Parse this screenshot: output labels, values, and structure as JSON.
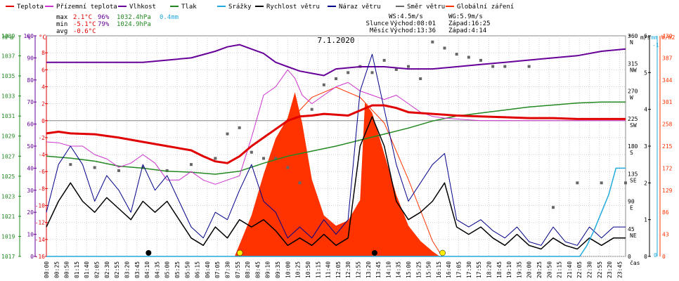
{
  "chart_data": {
    "type": "line",
    "title": "7.1.2020",
    "legend": [
      {
        "label": "Teplota",
        "color": "#e00000"
      },
      {
        "label": "Přízemní teplota",
        "color": "#cc33cc"
      },
      {
        "label": "Vlhkost",
        "color": "#660099"
      },
      {
        "label": "Tlak",
        "color": "#228822"
      },
      {
        "label": "Srážky",
        "color": "#22aadd"
      },
      {
        "label": "Rychlost větru",
        "color": "#000000"
      },
      {
        "label": "Náraz větru",
        "color": "#000088"
      },
      {
        "label": "Směr větru",
        "color": "#666666"
      },
      {
        "label": "Globální záření",
        "color": "#ff3300"
      }
    ],
    "stats": {
      "max_label": "max",
      "max_temp": "2.1°C",
      "max_hum": "96%",
      "max_press": "1032.4hPa",
      "max_rain": "0.4mm",
      "min_label": "min",
      "min_temp": "-5.1°C",
      "min_hum": "79%",
      "min_press": "1024.9hPa",
      "avg_label": "avg",
      "avg_temp": "-0.6°C"
    },
    "wind_info": {
      "ws": "WS:4.5m/s",
      "wg": "WG:5.9m/s"
    },
    "sun_info": {
      "label": "Slunce",
      "rise": "Východ:08:01",
      "set": "Západ:16:25"
    },
    "moon_info": {
      "label": "Měsíc",
      "rise": "Východ:13:36",
      "set": "Západ:4:14"
    },
    "axis_units": {
      "hpa": "hPa",
      "pct": "%",
      "deg_c": "°C",
      "dir": "°",
      "ms": "m/s",
      "mm": "mm",
      "wm2": "W/m2",
      "time": "čas"
    },
    "hpa_ticks": [
      "1039",
      "1037",
      "1035",
      "1033",
      "1031",
      "1029",
      "1027",
      "1025",
      "1023",
      "1021",
      "1019",
      "1017"
    ],
    "pct_ticks": [
      "100",
      "90",
      "80",
      "70",
      "60",
      "50",
      "40",
      "30",
      "20",
      "10",
      "0"
    ],
    "temp_ticks": [
      "8",
      "6",
      "4",
      "2",
      "0",
      "-2",
      "-4",
      "-6",
      "-8",
      "-10",
      "-12",
      "-14",
      "-16"
    ],
    "dir_ticks": [
      {
        "deg": "360",
        "lbl": "N"
      },
      {
        "deg": "315",
        "lbl": "NW"
      },
      {
        "deg": "270",
        "lbl": "W"
      },
      {
        "deg": "225",
        "lbl": "SW"
      },
      {
        "deg": "180",
        "lbl": "S"
      },
      {
        "deg": "135",
        "lbl": "SE"
      },
      {
        "deg": "90",
        "lbl": "E"
      },
      {
        "deg": "45",
        "lbl": "NE"
      },
      {
        "deg": "0",
        "lbl": ""
      }
    ],
    "ms_ticks": [
      "6",
      "5",
      "4",
      "3",
      "2",
      "1",
      "0"
    ],
    "mm_ticks": [
      "-1",
      "0"
    ],
    "wm2_ticks": [
      "430",
      "387",
      "344",
      "301",
      "258",
      "215",
      "172",
      "129",
      "86",
      "43",
      "0"
    ],
    "x_labels": [
      "00:00",
      "00:25",
      "00:50",
      "01:15",
      "01:40",
      "02:05",
      "02:30",
      "02:55",
      "03:20",
      "03:45",
      "04:10",
      "04:35",
      "05:00",
      "05:25",
      "05:50",
      "06:15",
      "06:40",
      "07:05",
      "07:30",
      "07:55",
      "08:20",
      "08:45",
      "09:10",
      "09:35",
      "10:00",
      "10:25",
      "10:50",
      "11:15",
      "11:40",
      "12:05",
      "12:30",
      "12:55",
      "13:20",
      "13:45",
      "14:10",
      "14:35",
      "15:00",
      "15:25",
      "15:50",
      "16:15",
      "16:40",
      "17:05",
      "17:30",
      "17:55",
      "18:20",
      "18:45",
      "19:10",
      "19:35",
      "20:00",
      "20:25",
      "20:50",
      "21:15",
      "21:40",
      "22:05",
      "22:30",
      "22:55",
      "23:20",
      "23:45"
    ],
    "temperature": {
      "x_hours": [
        0,
        0.5,
        1,
        2,
        3,
        4,
        5,
        6,
        6.5,
        7,
        7.5,
        8,
        8.5,
        9,
        9.5,
        10,
        10.5,
        11,
        11.5,
        12,
        12.5,
        13,
        13.5,
        14,
        14.5,
        15,
        16,
        17,
        18,
        19,
        20,
        21,
        22,
        23,
        24
      ],
      "y": [
        -1.5,
        -1.3,
        -1.5,
        -1.6,
        -2.0,
        -2.5,
        -3.0,
        -3.5,
        -4.2,
        -4.8,
        -5.0,
        -4.2,
        -3.0,
        -2.0,
        -1.0,
        0.0,
        0.5,
        0.6,
        0.8,
        0.7,
        0.6,
        1.2,
        1.8,
        1.8,
        1.5,
        1.0,
        0.8,
        0.6,
        0.5,
        0.4,
        0.3,
        0.3,
        0.2,
        0.2,
        0.2
      ]
    },
    "ground_temperature": {
      "x_hours": [
        0,
        0.5,
        1,
        1.5,
        2,
        2.5,
        3,
        3.5,
        4,
        4.5,
        5,
        5.5,
        6,
        6.5,
        7,
        7.5,
        8,
        8.5,
        9,
        9.5,
        10,
        10.3,
        10.6,
        11,
        11.5,
        12,
        12.5,
        13,
        13.5,
        14,
        14.5,
        15,
        15.5,
        16,
        16.5,
        17,
        17.5,
        18,
        24
      ],
      "y": [
        -2.5,
        -2.6,
        -3.0,
        -3.0,
        -4.0,
        -4.5,
        -5.5,
        -5.0,
        -4.0,
        -5.0,
        -7.0,
        -7.0,
        -6.0,
        -7.0,
        -7.5,
        -7.0,
        -6.5,
        -2.0,
        3.0,
        4.0,
        6.0,
        5.0,
        3.0,
        2.0,
        3.0,
        4.0,
        4.5,
        3.5,
        3.0,
        2.5,
        3.0,
        2.0,
        1.0,
        0.5,
        0.3,
        0.2,
        0.1,
        0.0,
        0.0
      ]
    },
    "humidity": {
      "x_hours": [
        0,
        2,
        4,
        6,
        7,
        7.5,
        8,
        8.5,
        9,
        9.5,
        10,
        10.5,
        11,
        11.5,
        12,
        13,
        14,
        15,
        16,
        17,
        18,
        19,
        20,
        21,
        22,
        23,
        24
      ],
      "y": [
        88,
        88,
        88,
        90,
        93,
        95,
        96,
        94,
        92,
        88,
        86,
        84,
        83,
        82,
        85,
        86,
        86,
        85,
        85,
        86,
        87,
        88,
        89,
        90,
        91,
        93,
        94
      ]
    },
    "pressure": {
      "x_hours": [
        0,
        1,
        2,
        3,
        4,
        5,
        6,
        7,
        8,
        9,
        10,
        11,
        12,
        13,
        14,
        15,
        16,
        17,
        18,
        19,
        20,
        21,
        22,
        23,
        24
      ],
      "y": [
        1027.0,
        1026.8,
        1026.5,
        1026.0,
        1025.8,
        1025.5,
        1025.4,
        1025.2,
        1025.5,
        1026.3,
        1027.0,
        1027.5,
        1028.0,
        1028.6,
        1029.2,
        1029.8,
        1030.5,
        1031.0,
        1031.3,
        1031.6,
        1031.9,
        1032.1,
        1032.3,
        1032.4,
        1032.4
      ]
    },
    "precipitation": {
      "x_hours": [
        0,
        22.1,
        22.4,
        22.7,
        23.0,
        23.3,
        23.6,
        24
      ],
      "y": [
        0,
        0,
        0.05,
        0.12,
        0.2,
        0.28,
        0.4,
        0.4
      ]
    },
    "wind_speed": {
      "x_hours": [
        0,
        0.5,
        1,
        1.5,
        2,
        2.5,
        3,
        3.5,
        4,
        4.5,
        5,
        5.5,
        6,
        6.5,
        7,
        7.5,
        8,
        8.5,
        9,
        9.5,
        10,
        10.5,
        11,
        11.5,
        12,
        12.5,
        13,
        13.5,
        14,
        14.5,
        15,
        15.5,
        16,
        16.5,
        17,
        17.5,
        18,
        18.5,
        19,
        19.5,
        20,
        20.5,
        21,
        21.5,
        22,
        22.5,
        23,
        23.5,
        24
      ],
      "y": [
        0.8,
        1.5,
        2.0,
        1.5,
        1.2,
        1.6,
        1.3,
        1.0,
        1.5,
        1.2,
        1.5,
        1.0,
        0.5,
        0.3,
        0.8,
        0.5,
        1.0,
        0.8,
        1.0,
        0.7,
        0.3,
        0.5,
        0.3,
        0.6,
        0.3,
        0.5,
        3.0,
        3.8,
        3.0,
        1.5,
        1.0,
        1.2,
        1.5,
        2.0,
        0.8,
        0.6,
        0.8,
        0.5,
        0.3,
        0.6,
        0.3,
        0.2,
        0.5,
        0.3,
        0.2,
        0.5,
        0.3,
        0.5,
        0.5
      ]
    },
    "wind_gust": {
      "x_hours": [
        0,
        0.5,
        1,
        1.5,
        2,
        2.5,
        3,
        3.5,
        4,
        4.5,
        5,
        5.5,
        6,
        6.5,
        7,
        7.5,
        8,
        8.5,
        9,
        9.5,
        10,
        10.5,
        11,
        11.5,
        12,
        12.5,
        13,
        13.5,
        14,
        14.5,
        15,
        15.5,
        16,
        16.5,
        17,
        17.5,
        18,
        18.5,
        19,
        19.5,
        20,
        20.5,
        21,
        21.5,
        22,
        22.5,
        23,
        23.5,
        24
      ],
      "y": [
        1.2,
        2.5,
        3.0,
        2.5,
        1.5,
        2.2,
        1.8,
        1.2,
        2.5,
        1.8,
        2.2,
        1.5,
        0.8,
        0.5,
        1.2,
        1.0,
        1.8,
        2.5,
        1.5,
        1.2,
        0.5,
        0.8,
        0.5,
        1.0,
        0.6,
        1.0,
        4.5,
        5.5,
        4.0,
        2.5,
        1.5,
        2.0,
        2.5,
        2.8,
        1.0,
        0.8,
        1.0,
        0.7,
        0.5,
        0.8,
        0.4,
        0.3,
        0.8,
        0.4,
        0.3,
        0.8,
        0.5,
        0.8,
        0.8
      ]
    },
    "wind_direction": {
      "x_hours": [
        1,
        2,
        3,
        4,
        5,
        6,
        7,
        7.5,
        8,
        8.5,
        9,
        9.5,
        10,
        10.5,
        11,
        11.5,
        12,
        12.5,
        13,
        13.5,
        14,
        14.5,
        15,
        15.5,
        16,
        16.5,
        17,
        17.5,
        18,
        18.5,
        19,
        20,
        21,
        22,
        23,
        24
      ],
      "y": [
        150,
        145,
        140,
        145,
        140,
        150,
        160,
        200,
        210,
        170,
        160,
        160,
        145,
        120,
        240,
        280,
        290,
        300,
        310,
        300,
        320,
        305,
        310,
        290,
        350,
        340,
        330,
        325,
        320,
        310,
        310,
        310,
        80,
        120,
        120,
        120
      ]
    },
    "global_radiation": {
      "x_hours": [
        7.8,
        8.5,
        9,
        9.5,
        10,
        10.3,
        10.6,
        11,
        11.5,
        12,
        12.5,
        13,
        13.2,
        13.5,
        14,
        14.5,
        15,
        15.5,
        16,
        16.3
      ],
      "y": [
        0,
        80,
        160,
        230,
        270,
        320,
        260,
        150,
        80,
        60,
        70,
        110,
        300,
        280,
        200,
        120,
        60,
        30,
        10,
        0
      ]
    },
    "theoretical_radiation": {
      "x_hours": [
        8.0,
        9,
        10,
        11,
        12,
        13,
        14,
        15,
        16,
        16.4
      ],
      "y": [
        0,
        150,
        260,
        310,
        330,
        310,
        260,
        150,
        30,
        0
      ]
    },
    "x_range_hours": [
      0,
      24
    ],
    "ylim_temp": [
      -16,
      10
    ],
    "ylim_pct": [
      0,
      100
    ],
    "ylim_hpa": [
      1017,
      1039
    ],
    "ylim_ms": [
      0,
      6
    ],
    "ylim_mm": [
      0,
      1
    ],
    "ylim_wm2": [
      0,
      430
    ],
    "ylim_dir": [
      0,
      360
    ],
    "grid": true,
    "legend_placement": "top"
  }
}
